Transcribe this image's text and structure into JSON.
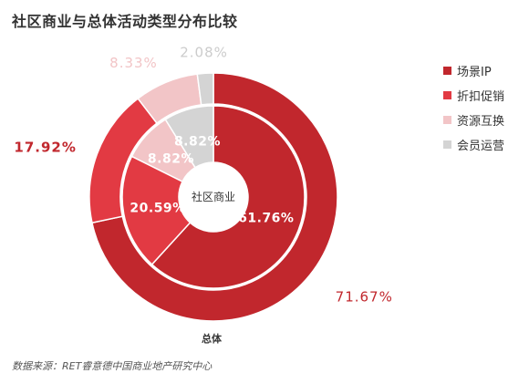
{
  "chart_data": {
    "type": "pie",
    "variant": "nested-donut",
    "title": "社区商业与总体活动类型分布比较",
    "categories": [
      "场景IP",
      "折扣促销",
      "资源互换",
      "会员运营"
    ],
    "colors": [
      "#c1272d",
      "#e23a43",
      "#f2c5c7",
      "#d4d4d4"
    ],
    "series": [
      {
        "name": "社区商业",
        "ring": "inner",
        "values": [
          61.76,
          20.59,
          8.82,
          8.82
        ],
        "labels": [
          "61.76%",
          "20.59%",
          "8.82%",
          "8.82%"
        ]
      },
      {
        "name": "总体",
        "ring": "outer",
        "values": [
          71.67,
          17.92,
          8.33,
          2.08
        ],
        "labels": [
          "71.67%",
          "17.92%",
          "8.33%",
          "2.08%"
        ]
      }
    ],
    "center_label": "社区商业",
    "outer_series_label": "总体",
    "legend_position": "right",
    "source": "数据来源：RET睿意德中国商业地产研究中心"
  }
}
